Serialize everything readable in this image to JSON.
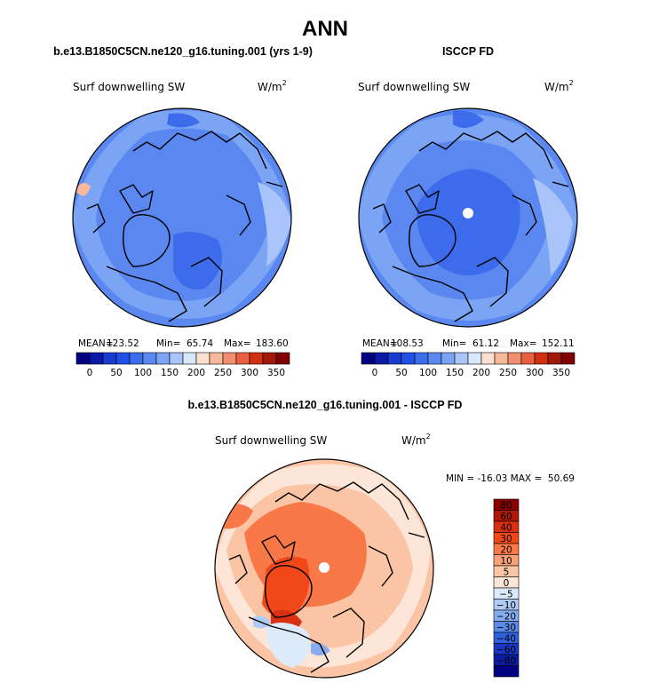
{
  "title": "ANN",
  "chart_data": [
    {
      "type": "polar-contour-map",
      "subtitle": "b.e13.B1850C5CN.ne120_g16.tuning.001 (yrs 1-9)",
      "variable": "Surf downwelling SW",
      "units_base": "W/m",
      "units_exp": "2",
      "stats": {
        "mean_label": "MEAN=",
        "mean": "123.52",
        "min_label": "Min=",
        "min": "65.74",
        "max_label": "Max=",
        "max": "183.60"
      },
      "colorbar": {
        "orientation": "horizontal",
        "levels": [
          0,
          25,
          50,
          75,
          100,
          125,
          150,
          175,
          200,
          225,
          250,
          275,
          300,
          325,
          350
        ],
        "tick_labels": [
          "0",
          "50",
          "100",
          "150",
          "200",
          "250",
          "300",
          "350"
        ],
        "colors": [
          "#000080",
          "#0a1aa8",
          "#1a3cd0",
          "#2050e8",
          "#3c6cec",
          "#5a88f0",
          "#7ca4f4",
          "#a8c4f8",
          "#d8e8fb",
          "#fce0d0",
          "#f8b89c",
          "#f09070",
          "#e86040",
          "#d03010",
          "#a01808",
          "#800000"
        ]
      }
    },
    {
      "type": "polar-contour-map",
      "subtitle": "ISCCP FD",
      "variable": "Surf downwelling SW",
      "units_base": "W/m",
      "units_exp": "2",
      "stats": {
        "mean_label": "MEAN=",
        "mean": "108.53",
        "min_label": "Min=",
        "min": "61.12",
        "max_label": "Max=",
        "max": "152.11"
      },
      "colorbar": {
        "orientation": "horizontal",
        "levels": [
          0,
          25,
          50,
          75,
          100,
          125,
          150,
          175,
          200,
          225,
          250,
          275,
          300,
          325,
          350
        ],
        "tick_labels": [
          "0",
          "50",
          "100",
          "150",
          "200",
          "250",
          "300",
          "350"
        ],
        "colors": [
          "#000080",
          "#0a1aa8",
          "#1a3cd0",
          "#2050e8",
          "#3c6cec",
          "#5a88f0",
          "#7ca4f4",
          "#a8c4f8",
          "#d8e8fb",
          "#fce0d0",
          "#f8b89c",
          "#f09070",
          "#e86040",
          "#d03010",
          "#a01808",
          "#800000"
        ]
      }
    },
    {
      "type": "polar-contour-map",
      "subtitle": "b.e13.B1850C5CN.ne120_g16.tuning.001 - ISCCP FD",
      "variable": "Surf downwelling SW",
      "units_base": "W/m",
      "units_exp": "2",
      "stats": {
        "text": "MIN = -16.03 MAX =  50.69",
        "min": -16.03,
        "max": 50.69
      },
      "colorbar": {
        "orientation": "vertical",
        "levels": [
          80,
          60,
          40,
          30,
          20,
          10,
          5,
          0,
          -5,
          -10,
          -20,
          -30,
          -40,
          -60,
          -80
        ],
        "tick_labels": [
          "80",
          "60",
          "40",
          "30",
          "20",
          "10",
          "5",
          "0",
          "−5",
          "−10",
          "−20",
          "−30",
          "−40",
          "−60",
          "−80"
        ],
        "colors": [
          "#8a0000",
          "#b01808",
          "#d83010",
          "#f04818",
          "#f87848",
          "#f8a078",
          "#fbc4a4",
          "#fde6d8",
          "#dceafa",
          "#b0ccf6",
          "#88acf0",
          "#5c88e8",
          "#3060dc",
          "#1838c4",
          "#0c1ca0",
          "#000080"
        ]
      }
    }
  ]
}
